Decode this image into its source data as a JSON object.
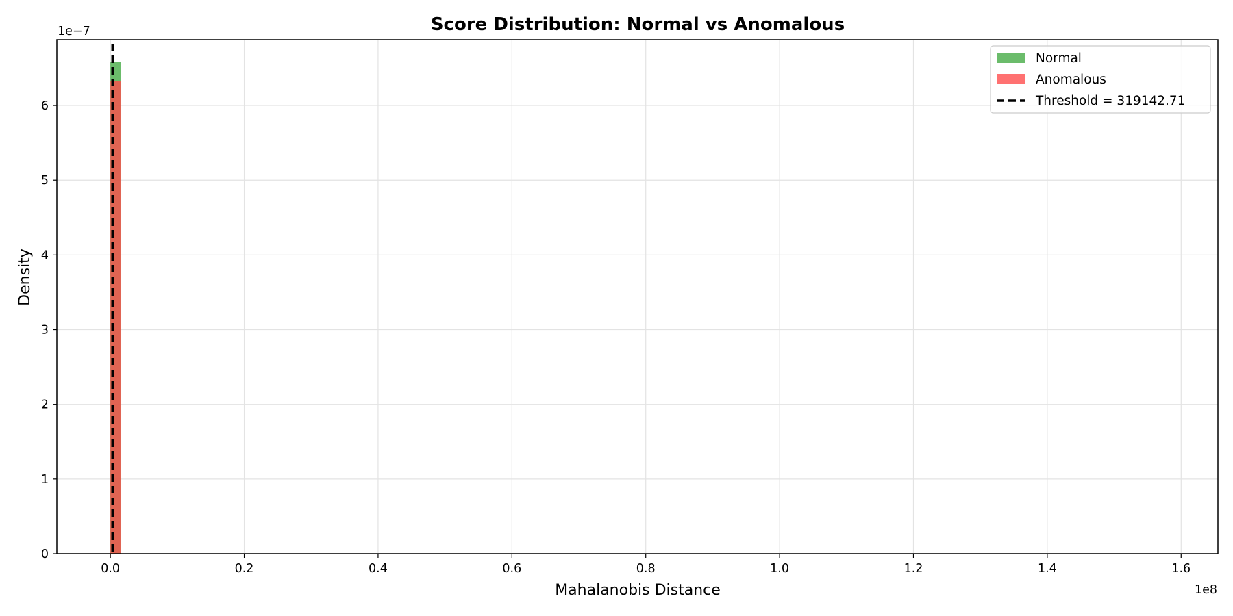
{
  "chart_data": {
    "type": "histogram",
    "title": "Score Distribution: Normal vs Anomalous",
    "xlabel": "Mahalanobis Distance",
    "ylabel": "Density",
    "x_offset_label": "1e8",
    "y_offset_label": "1e−7",
    "x_scale": 100000000,
    "y_scale": 1e-07,
    "xlim": [
      -0.08,
      1.655
    ],
    "ylim": [
      0,
      6.88
    ],
    "x_ticks": [
      0.0,
      0.2,
      0.4,
      0.6,
      0.8,
      1.0,
      1.2,
      1.4,
      1.6
    ],
    "x_tick_labels": [
      "0.0",
      "0.2",
      "0.4",
      "0.6",
      "0.8",
      "1.0",
      "1.2",
      "1.4",
      "1.6"
    ],
    "y_ticks": [
      0,
      1,
      2,
      3,
      4,
      5,
      6
    ],
    "y_tick_labels": [
      "0",
      "1",
      "2",
      "3",
      "4",
      "5",
      "6"
    ],
    "grid": true,
    "legend_position": "top-right",
    "series": [
      {
        "name": "Normal",
        "color": "#2ca02c",
        "alpha": 0.7,
        "bins": [
          {
            "x0": 0.0,
            "x1": 0.016,
            "density": 6.58
          }
        ]
      },
      {
        "name": "Anomalous",
        "color": "#ff4d4d",
        "alpha": 0.8,
        "bins": [
          {
            "x0": 0.0,
            "x1": 0.016,
            "density": 6.33
          }
        ]
      }
    ],
    "threshold": {
      "value": 319142.71,
      "label": "Threshold = 319142.71",
      "color": "#000000"
    }
  }
}
